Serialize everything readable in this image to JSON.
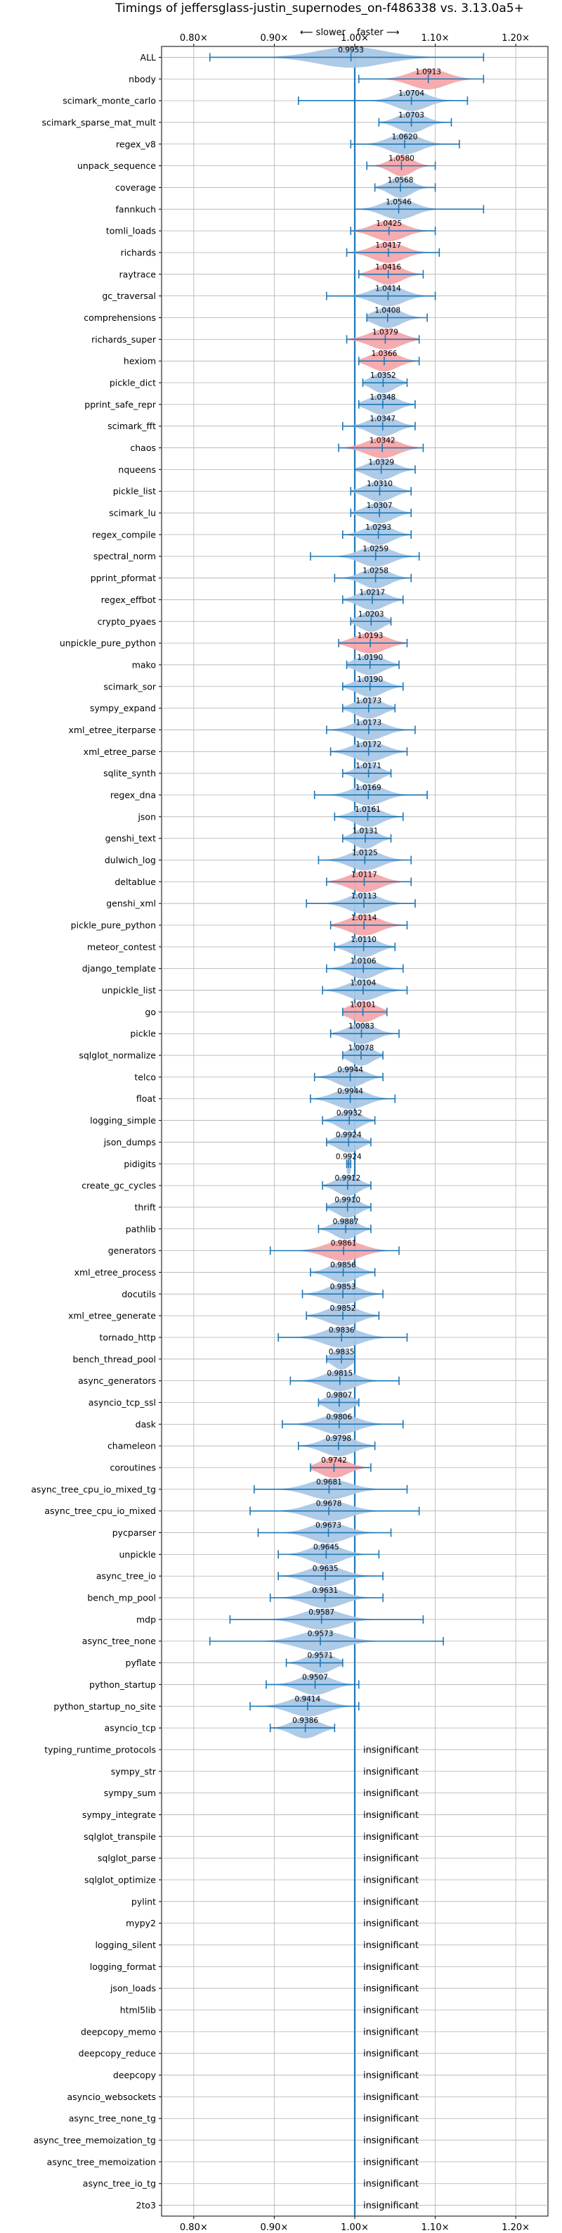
{
  "chart_data": {
    "type": "violin",
    "title": "Timings of jeffersglass-justin_supernodes_on-f486338 vs. 3.13.0a5+",
    "annotation_slower": "⟵ slower",
    "annotation_faster": "faster ⟶",
    "x_ticks": [
      "0.80×",
      "0.90×",
      "1.00×",
      "1.10×",
      "1.20×"
    ],
    "x_tick_values": [
      0.8,
      0.9,
      1.0,
      1.1,
      1.2
    ],
    "xlim": [
      0.76,
      1.24
    ],
    "reference_line": 1.0,
    "grid": true,
    "colors": {
      "normal": "#a9c7e6",
      "highlight": "#f4a7ab",
      "line": "#1f77b4",
      "reference": "#1f77b4"
    },
    "insignificant_label": "insignificant",
    "benchmarks": [
      {
        "name": "ALL",
        "median": 0.9953,
        "label": "0.9953",
        "min": 0.82,
        "max": 1.16,
        "spread": 0.075,
        "highlight": false
      },
      {
        "name": "nbody",
        "median": 1.0913,
        "label": "1.0913",
        "min": 1.005,
        "max": 1.16,
        "spread": 0.04,
        "highlight": true
      },
      {
        "name": "scimark_monte_carlo",
        "median": 1.0704,
        "label": "1.0704",
        "min": 0.93,
        "max": 1.14,
        "spread": 0.035,
        "highlight": false
      },
      {
        "name": "scimark_sparse_mat_mult",
        "median": 1.0703,
        "label": "1.0703",
        "min": 1.03,
        "max": 1.12,
        "spread": 0.03,
        "highlight": false
      },
      {
        "name": "regex_v8",
        "median": 1.062,
        "label": "1.0620",
        "min": 0.995,
        "max": 1.13,
        "spread": 0.035,
        "highlight": false
      },
      {
        "name": "unpack_sequence",
        "median": 1.058,
        "label": "1.0580",
        "min": 1.015,
        "max": 1.1,
        "spread": 0.025,
        "highlight": true
      },
      {
        "name": "coverage",
        "median": 1.0568,
        "label": "1.0568",
        "min": 1.025,
        "max": 1.1,
        "spread": 0.025,
        "highlight": false
      },
      {
        "name": "fannkuch",
        "median": 1.0546,
        "label": "1.0546",
        "min": 1.0,
        "max": 1.16,
        "spread": 0.035,
        "highlight": false
      },
      {
        "name": "tomli_loads",
        "median": 1.0425,
        "label": "1.0425",
        "min": 0.995,
        "max": 1.1,
        "spread": 0.035,
        "highlight": true
      },
      {
        "name": "richards",
        "median": 1.0417,
        "label": "1.0417",
        "min": 0.99,
        "max": 1.105,
        "spread": 0.035,
        "highlight": true
      },
      {
        "name": "raytrace",
        "median": 1.0416,
        "label": "1.0416",
        "min": 1.005,
        "max": 1.085,
        "spread": 0.03,
        "highlight": true
      },
      {
        "name": "gc_traversal",
        "median": 1.0414,
        "label": "1.0414",
        "min": 0.965,
        "max": 1.1,
        "spread": 0.035,
        "highlight": false
      },
      {
        "name": "comprehensions",
        "median": 1.0408,
        "label": "1.0408",
        "min": 1.015,
        "max": 1.09,
        "spread": 0.03,
        "highlight": false
      },
      {
        "name": "richards_super",
        "median": 1.0379,
        "label": "1.0379",
        "min": 0.99,
        "max": 1.08,
        "spread": 0.035,
        "highlight": true
      },
      {
        "name": "hexiom",
        "median": 1.0366,
        "label": "1.0366",
        "min": 1.005,
        "max": 1.08,
        "spread": 0.03,
        "highlight": true
      },
      {
        "name": "pickle_dict",
        "median": 1.0352,
        "label": "1.0352",
        "min": 1.01,
        "max": 1.065,
        "spread": 0.025,
        "highlight": false
      },
      {
        "name": "pprint_safe_repr",
        "median": 1.0348,
        "label": "1.0348",
        "min": 1.005,
        "max": 1.075,
        "spread": 0.03,
        "highlight": false
      },
      {
        "name": "scimark_fft",
        "median": 1.0347,
        "label": "1.0347",
        "min": 0.985,
        "max": 1.075,
        "spread": 0.03,
        "highlight": false
      },
      {
        "name": "chaos",
        "median": 1.0342,
        "label": "1.0342",
        "min": 0.98,
        "max": 1.085,
        "spread": 0.035,
        "highlight": true
      },
      {
        "name": "nqueens",
        "median": 1.0329,
        "label": "1.0329",
        "min": 1.0,
        "max": 1.075,
        "spread": 0.03,
        "highlight": false
      },
      {
        "name": "pickle_list",
        "median": 1.031,
        "label": "1.0310",
        "min": 0.995,
        "max": 1.07,
        "spread": 0.03,
        "highlight": false
      },
      {
        "name": "scimark_lu",
        "median": 1.0307,
        "label": "1.0307",
        "min": 0.995,
        "max": 1.07,
        "spread": 0.03,
        "highlight": false
      },
      {
        "name": "regex_compile",
        "median": 1.0293,
        "label": "1.0293",
        "min": 0.985,
        "max": 1.07,
        "spread": 0.03,
        "highlight": false
      },
      {
        "name": "spectral_norm",
        "median": 1.0259,
        "label": "1.0259",
        "min": 0.945,
        "max": 1.08,
        "spread": 0.035,
        "highlight": false
      },
      {
        "name": "pprint_pformat",
        "median": 1.0258,
        "label": "1.0258",
        "min": 0.975,
        "max": 1.07,
        "spread": 0.03,
        "highlight": false
      },
      {
        "name": "regex_effbot",
        "median": 1.0217,
        "label": "1.0217",
        "min": 0.985,
        "max": 1.06,
        "spread": 0.03,
        "highlight": false
      },
      {
        "name": "crypto_pyaes",
        "median": 1.0203,
        "label": "1.0203",
        "min": 0.995,
        "max": 1.045,
        "spread": 0.025,
        "highlight": false
      },
      {
        "name": "unpickle_pure_python",
        "median": 1.0193,
        "label": "1.0193",
        "min": 0.98,
        "max": 1.065,
        "spread": 0.035,
        "highlight": true
      },
      {
        "name": "mako",
        "median": 1.019,
        "label": "1.0190",
        "min": 0.99,
        "max": 1.055,
        "spread": 0.03,
        "highlight": false
      },
      {
        "name": "scimark_sor",
        "median": 1.019,
        "label": "1.0190",
        "min": 0.985,
        "max": 1.06,
        "spread": 0.03,
        "highlight": false
      },
      {
        "name": "sympy_expand",
        "median": 1.0173,
        "label": "1.0173",
        "min": 0.985,
        "max": 1.05,
        "spread": 0.03,
        "highlight": false
      },
      {
        "name": "xml_etree_iterparse",
        "median": 1.0173,
        "label": "1.0173",
        "min": 0.965,
        "max": 1.075,
        "spread": 0.035,
        "highlight": false
      },
      {
        "name": "xml_etree_parse",
        "median": 1.0172,
        "label": "1.0172",
        "min": 0.97,
        "max": 1.065,
        "spread": 0.035,
        "highlight": false
      },
      {
        "name": "sqlite_synth",
        "median": 1.0171,
        "label": "1.0171",
        "min": 0.985,
        "max": 1.045,
        "spread": 0.025,
        "highlight": false
      },
      {
        "name": "regex_dna",
        "median": 1.0169,
        "label": "1.0169",
        "min": 0.95,
        "max": 1.09,
        "spread": 0.035,
        "highlight": false
      },
      {
        "name": "json",
        "median": 1.0161,
        "label": "1.0161",
        "min": 0.975,
        "max": 1.06,
        "spread": 0.03,
        "highlight": false
      },
      {
        "name": "genshi_text",
        "median": 1.0131,
        "label": "1.0131",
        "min": 0.985,
        "max": 1.045,
        "spread": 0.025,
        "highlight": false
      },
      {
        "name": "dulwich_log",
        "median": 1.0125,
        "label": "1.0125",
        "min": 0.955,
        "max": 1.07,
        "spread": 0.035,
        "highlight": false
      },
      {
        "name": "deltablue",
        "median": 1.0117,
        "label": "1.0117",
        "min": 0.965,
        "max": 1.07,
        "spread": 0.035,
        "highlight": true
      },
      {
        "name": "genshi_xml",
        "median": 1.0113,
        "label": "1.0113",
        "min": 0.94,
        "max": 1.075,
        "spread": 0.035,
        "highlight": false
      },
      {
        "name": "pickle_pure_python",
        "median": 1.0114,
        "label": "1.0114",
        "min": 0.97,
        "max": 1.065,
        "spread": 0.035,
        "highlight": true
      },
      {
        "name": "meteor_contest",
        "median": 1.011,
        "label": "1.0110",
        "min": 0.975,
        "max": 1.05,
        "spread": 0.03,
        "highlight": false
      },
      {
        "name": "django_template",
        "median": 1.0106,
        "label": "1.0106",
        "min": 0.965,
        "max": 1.06,
        "spread": 0.03,
        "highlight": false
      },
      {
        "name": "unpickle_list",
        "median": 1.0104,
        "label": "1.0104",
        "min": 0.96,
        "max": 1.065,
        "spread": 0.035,
        "highlight": false
      },
      {
        "name": "go",
        "median": 1.0101,
        "label": "1.0101",
        "min": 0.985,
        "max": 1.04,
        "spread": 0.03,
        "highlight": true
      },
      {
        "name": "pickle",
        "median": 1.0083,
        "label": "1.0083",
        "min": 0.97,
        "max": 1.055,
        "spread": 0.03,
        "highlight": false
      },
      {
        "name": "sqlglot_normalize",
        "median": 1.0078,
        "label": "1.0078",
        "min": 0.985,
        "max": 1.035,
        "spread": 0.025,
        "highlight": false
      },
      {
        "name": "telco",
        "median": 0.9944,
        "label": "0.9944",
        "min": 0.95,
        "max": 1.035,
        "spread": 0.03,
        "highlight": false
      },
      {
        "name": "float",
        "median": 0.9944,
        "label": "0.9944",
        "min": 0.945,
        "max": 1.05,
        "spread": 0.035,
        "highlight": false
      },
      {
        "name": "logging_simple",
        "median": 0.9932,
        "label": "0.9932",
        "min": 0.96,
        "max": 1.025,
        "spread": 0.025,
        "highlight": false
      },
      {
        "name": "json_dumps",
        "median": 0.9924,
        "label": "0.9924",
        "min": 0.965,
        "max": 1.02,
        "spread": 0.025,
        "highlight": false
      },
      {
        "name": "pidigits",
        "median": 0.9924,
        "label": "0.9924",
        "min": 0.99,
        "max": 0.995,
        "spread": 0.008,
        "highlight": false
      },
      {
        "name": "create_gc_cycles",
        "median": 0.9912,
        "label": "0.9912",
        "min": 0.96,
        "max": 1.02,
        "spread": 0.025,
        "highlight": false
      },
      {
        "name": "thrift",
        "median": 0.991,
        "label": "0.9910",
        "min": 0.965,
        "max": 1.02,
        "spread": 0.025,
        "highlight": false
      },
      {
        "name": "pathlib",
        "median": 0.9887,
        "label": "0.9887",
        "min": 0.955,
        "max": 1.02,
        "spread": 0.025,
        "highlight": false
      },
      {
        "name": "generators",
        "median": 0.9861,
        "label": "0.9861",
        "min": 0.895,
        "max": 1.055,
        "spread": 0.04,
        "highlight": true
      },
      {
        "name": "xml_etree_process",
        "median": 0.9856,
        "label": "0.9856",
        "min": 0.945,
        "max": 1.025,
        "spread": 0.03,
        "highlight": false
      },
      {
        "name": "docutils",
        "median": 0.9853,
        "label": "0.9853",
        "min": 0.935,
        "max": 1.035,
        "spread": 0.035,
        "highlight": false
      },
      {
        "name": "xml_etree_generate",
        "median": 0.9852,
        "label": "0.9852",
        "min": 0.94,
        "max": 1.03,
        "spread": 0.035,
        "highlight": false
      },
      {
        "name": "tornado_http",
        "median": 0.9836,
        "label": "0.9836",
        "min": 0.905,
        "max": 1.065,
        "spread": 0.04,
        "highlight": false
      },
      {
        "name": "bench_thread_pool",
        "median": 0.9835,
        "label": "0.9835",
        "min": 0.965,
        "max": 1.0,
        "spread": 0.02,
        "highlight": false
      },
      {
        "name": "async_generators",
        "median": 0.9815,
        "label": "0.9815",
        "min": 0.92,
        "max": 1.055,
        "spread": 0.035,
        "highlight": false
      },
      {
        "name": "asyncio_tcp_ssl",
        "median": 0.9807,
        "label": "0.9807",
        "min": 0.955,
        "max": 1.005,
        "spread": 0.025,
        "highlight": false
      },
      {
        "name": "dask",
        "median": 0.9806,
        "label": "0.9806",
        "min": 0.91,
        "max": 1.06,
        "spread": 0.04,
        "highlight": false
      },
      {
        "name": "chameleon",
        "median": 0.9798,
        "label": "0.9798",
        "min": 0.93,
        "max": 1.025,
        "spread": 0.035,
        "highlight": false
      },
      {
        "name": "coroutines",
        "median": 0.9742,
        "label": "0.9742",
        "min": 0.945,
        "max": 1.02,
        "spread": 0.03,
        "highlight": true
      },
      {
        "name": "async_tree_cpu_io_mixed_tg",
        "median": 0.9681,
        "label": "0.9681",
        "min": 0.875,
        "max": 1.065,
        "spread": 0.045,
        "highlight": false
      },
      {
        "name": "async_tree_cpu_io_mixed",
        "median": 0.9678,
        "label": "0.9678",
        "min": 0.87,
        "max": 1.08,
        "spread": 0.045,
        "highlight": false
      },
      {
        "name": "pycparser",
        "median": 0.9673,
        "label": "0.9673",
        "min": 0.88,
        "max": 1.045,
        "spread": 0.04,
        "highlight": false
      },
      {
        "name": "unpickle",
        "median": 0.9645,
        "label": "0.9645",
        "min": 0.905,
        "max": 1.03,
        "spread": 0.035,
        "highlight": false
      },
      {
        "name": "async_tree_io",
        "median": 0.9635,
        "label": "0.9635",
        "min": 0.905,
        "max": 1.035,
        "spread": 0.04,
        "highlight": false
      },
      {
        "name": "bench_mp_pool",
        "median": 0.9631,
        "label": "0.9631",
        "min": 0.895,
        "max": 1.035,
        "spread": 0.04,
        "highlight": false
      },
      {
        "name": "mdp",
        "median": 0.9587,
        "label": "0.9587",
        "min": 0.845,
        "max": 1.085,
        "spread": 0.045,
        "highlight": false
      },
      {
        "name": "async_tree_none",
        "median": 0.9573,
        "label": "0.9573",
        "min": 0.82,
        "max": 1.11,
        "spread": 0.05,
        "highlight": false
      },
      {
        "name": "pyflate",
        "median": 0.9571,
        "label": "0.9571",
        "min": 0.915,
        "max": 0.985,
        "spread": 0.03,
        "highlight": false
      },
      {
        "name": "python_startup",
        "median": 0.9507,
        "label": "0.9507",
        "min": 0.89,
        "max": 1.005,
        "spread": 0.035,
        "highlight": false
      },
      {
        "name": "python_startup_no_site",
        "median": 0.9414,
        "label": "0.9414",
        "min": 0.87,
        "max": 1.005,
        "spread": 0.04,
        "highlight": false
      },
      {
        "name": "asyncio_tcp",
        "median": 0.9386,
        "label": "0.9386",
        "min": 0.895,
        "max": 0.975,
        "spread": 0.03,
        "highlight": false
      },
      {
        "name": "typing_runtime_protocols",
        "insignificant": true
      },
      {
        "name": "sympy_str",
        "insignificant": true
      },
      {
        "name": "sympy_sum",
        "insignificant": true
      },
      {
        "name": "sympy_integrate",
        "insignificant": true
      },
      {
        "name": "sqlglot_transpile",
        "insignificant": true
      },
      {
        "name": "sqlglot_parse",
        "insignificant": true
      },
      {
        "name": "sqlglot_optimize",
        "insignificant": true
      },
      {
        "name": "pylint",
        "insignificant": true
      },
      {
        "name": "mypy2",
        "insignificant": true
      },
      {
        "name": "logging_silent",
        "insignificant": true
      },
      {
        "name": "logging_format",
        "insignificant": true
      },
      {
        "name": "json_loads",
        "insignificant": true
      },
      {
        "name": "html5lib",
        "insignificant": true
      },
      {
        "name": "deepcopy_memo",
        "insignificant": true
      },
      {
        "name": "deepcopy_reduce",
        "insignificant": true
      },
      {
        "name": "deepcopy",
        "insignificant": true
      },
      {
        "name": "asyncio_websockets",
        "insignificant": true
      },
      {
        "name": "async_tree_none_tg",
        "insignificant": true
      },
      {
        "name": "async_tree_memoization_tg",
        "insignificant": true
      },
      {
        "name": "async_tree_memoization",
        "insignificant": true
      },
      {
        "name": "async_tree_io_tg",
        "insignificant": true
      },
      {
        "name": "2to3",
        "insignificant": true
      }
    ]
  }
}
